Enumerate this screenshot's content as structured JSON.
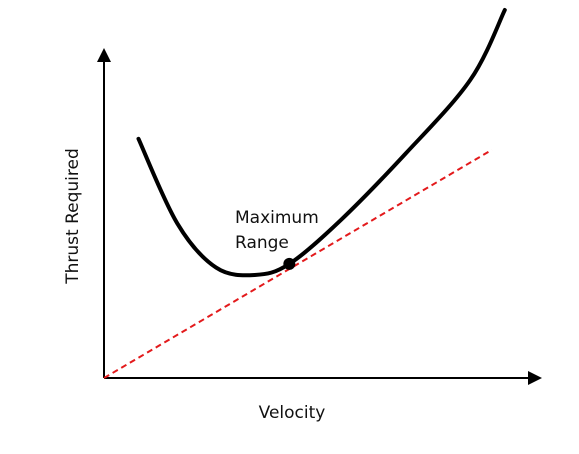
{
  "chart_data": {
    "type": "line",
    "xlabel": "Velocity",
    "ylabel": "Thrust Required",
    "grid": false,
    "ticks": false,
    "xlim": [
      0,
      1
    ],
    "ylim": [
      0,
      1
    ],
    "series": [
      {
        "kind": "curve",
        "color": "#000000",
        "points": [
          [
            0.08,
            0.65
          ],
          [
            0.17,
            0.42
          ],
          [
            0.26,
            0.3
          ],
          [
            0.35,
            0.28
          ],
          [
            0.43,
            0.31
          ],
          [
            0.55,
            0.43
          ],
          [
            0.7,
            0.61
          ],
          [
            0.85,
            0.81
          ],
          [
            0.93,
            1.0
          ]
        ]
      },
      {
        "kind": "tangent",
        "color": "#e31a1c",
        "style": "dashed",
        "points": [
          [
            0.0,
            0.0
          ],
          [
            0.9,
            0.62
          ]
        ]
      }
    ],
    "annotations": [
      {
        "lines": [
          "Maximum",
          "Range"
        ],
        "point": [
          0.43,
          0.31
        ]
      }
    ]
  }
}
